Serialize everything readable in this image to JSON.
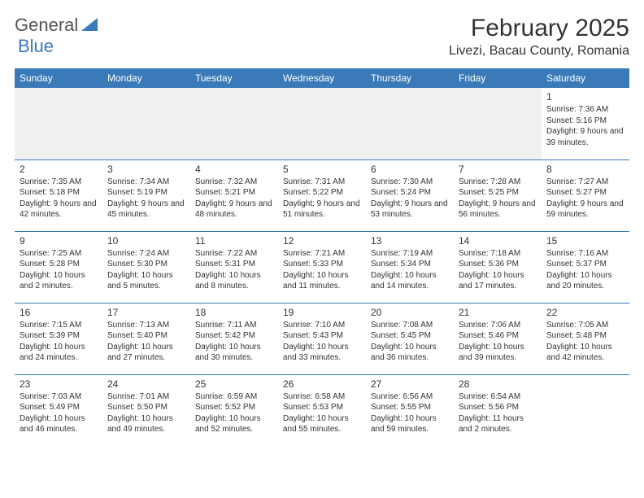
{
  "logo": {
    "part1": "General",
    "part2": "Blue"
  },
  "header": {
    "month_title": "February 2025",
    "location": "Livezi, Bacau County, Romania"
  },
  "colors": {
    "header_bg": "#3a7ab8",
    "header_text": "#ffffff",
    "row_divider": "#3a7ab8",
    "empty_row_bg": "#f0f0f0",
    "text": "#333333"
  },
  "columns": [
    "Sunday",
    "Monday",
    "Tuesday",
    "Wednesday",
    "Thursday",
    "Friday",
    "Saturday"
  ],
  "weeks": [
    [
      null,
      null,
      null,
      null,
      null,
      null,
      {
        "n": "1",
        "sr": "7:36 AM",
        "ss": "5:16 PM",
        "dl": "9 hours and 39 minutes."
      }
    ],
    [
      {
        "n": "2",
        "sr": "7:35 AM",
        "ss": "5:18 PM",
        "dl": "9 hours and 42 minutes."
      },
      {
        "n": "3",
        "sr": "7:34 AM",
        "ss": "5:19 PM",
        "dl": "9 hours and 45 minutes."
      },
      {
        "n": "4",
        "sr": "7:32 AM",
        "ss": "5:21 PM",
        "dl": "9 hours and 48 minutes."
      },
      {
        "n": "5",
        "sr": "7:31 AM",
        "ss": "5:22 PM",
        "dl": "9 hours and 51 minutes."
      },
      {
        "n": "6",
        "sr": "7:30 AM",
        "ss": "5:24 PM",
        "dl": "9 hours and 53 minutes."
      },
      {
        "n": "7",
        "sr": "7:28 AM",
        "ss": "5:25 PM",
        "dl": "9 hours and 56 minutes."
      },
      {
        "n": "8",
        "sr": "7:27 AM",
        "ss": "5:27 PM",
        "dl": "9 hours and 59 minutes."
      }
    ],
    [
      {
        "n": "9",
        "sr": "7:25 AM",
        "ss": "5:28 PM",
        "dl": "10 hours and 2 minutes."
      },
      {
        "n": "10",
        "sr": "7:24 AM",
        "ss": "5:30 PM",
        "dl": "10 hours and 5 minutes."
      },
      {
        "n": "11",
        "sr": "7:22 AM",
        "ss": "5:31 PM",
        "dl": "10 hours and 8 minutes."
      },
      {
        "n": "12",
        "sr": "7:21 AM",
        "ss": "5:33 PM",
        "dl": "10 hours and 11 minutes."
      },
      {
        "n": "13",
        "sr": "7:19 AM",
        "ss": "5:34 PM",
        "dl": "10 hours and 14 minutes."
      },
      {
        "n": "14",
        "sr": "7:18 AM",
        "ss": "5:36 PM",
        "dl": "10 hours and 17 minutes."
      },
      {
        "n": "15",
        "sr": "7:16 AM",
        "ss": "5:37 PM",
        "dl": "10 hours and 20 minutes."
      }
    ],
    [
      {
        "n": "16",
        "sr": "7:15 AM",
        "ss": "5:39 PM",
        "dl": "10 hours and 24 minutes."
      },
      {
        "n": "17",
        "sr": "7:13 AM",
        "ss": "5:40 PM",
        "dl": "10 hours and 27 minutes."
      },
      {
        "n": "18",
        "sr": "7:11 AM",
        "ss": "5:42 PM",
        "dl": "10 hours and 30 minutes."
      },
      {
        "n": "19",
        "sr": "7:10 AM",
        "ss": "5:43 PM",
        "dl": "10 hours and 33 minutes."
      },
      {
        "n": "20",
        "sr": "7:08 AM",
        "ss": "5:45 PM",
        "dl": "10 hours and 36 minutes."
      },
      {
        "n": "21",
        "sr": "7:06 AM",
        "ss": "5:46 PM",
        "dl": "10 hours and 39 minutes."
      },
      {
        "n": "22",
        "sr": "7:05 AM",
        "ss": "5:48 PM",
        "dl": "10 hours and 42 minutes."
      }
    ],
    [
      {
        "n": "23",
        "sr": "7:03 AM",
        "ss": "5:49 PM",
        "dl": "10 hours and 46 minutes."
      },
      {
        "n": "24",
        "sr": "7:01 AM",
        "ss": "5:50 PM",
        "dl": "10 hours and 49 minutes."
      },
      {
        "n": "25",
        "sr": "6:59 AM",
        "ss": "5:52 PM",
        "dl": "10 hours and 52 minutes."
      },
      {
        "n": "26",
        "sr": "6:58 AM",
        "ss": "5:53 PM",
        "dl": "10 hours and 55 minutes."
      },
      {
        "n": "27",
        "sr": "6:56 AM",
        "ss": "5:55 PM",
        "dl": "10 hours and 59 minutes."
      },
      {
        "n": "28",
        "sr": "6:54 AM",
        "ss": "5:56 PM",
        "dl": "11 hours and 2 minutes."
      },
      null
    ]
  ],
  "labels": {
    "sunrise": "Sunrise:",
    "sunset": "Sunset:",
    "daylight": "Daylight:"
  }
}
